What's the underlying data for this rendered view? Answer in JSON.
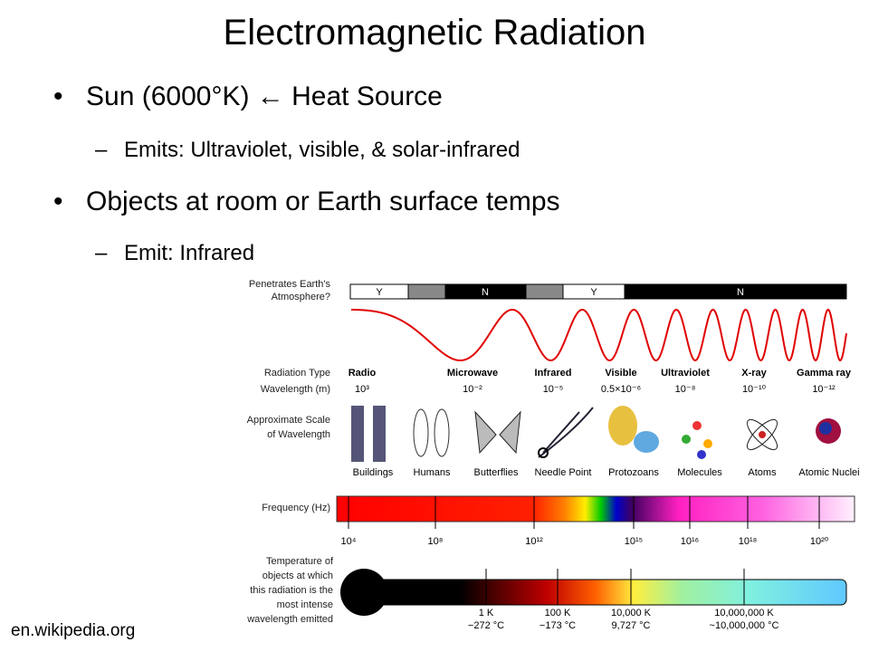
{
  "title": "Electromagnetic Radiation",
  "bullets": [
    {
      "text": "Sun (6000°K) ← Heat Source",
      "sub": [
        "Emits: Ultraviolet, visible, & solar-infrared"
      ]
    },
    {
      "text": "Objects at room or Earth surface temps",
      "sub": [
        "Emit: Infrared"
      ]
    }
  ],
  "source": "en.wikipedia.org",
  "diagram": {
    "atmosphere_label": [
      "Penetrates Earth's",
      "Atmosphere?"
    ],
    "atmosphere_bands": [
      "Y",
      "N",
      "Y",
      "N"
    ],
    "radiation_type_label": "Radiation Type",
    "wavelength_label": "Wavelength (m)",
    "types": [
      {
        "name": "Radio",
        "wavelength": "10³"
      },
      {
        "name": "Microwave",
        "wavelength": "10⁻²"
      },
      {
        "name": "Infrared",
        "wavelength": "10⁻⁵"
      },
      {
        "name": "Visible",
        "wavelength": "0.5×10⁻⁶"
      },
      {
        "name": "Ultraviolet",
        "wavelength": "10⁻⁸"
      },
      {
        "name": "X-ray",
        "wavelength": "10⁻¹⁰"
      },
      {
        "name": "Gamma ray",
        "wavelength": "10⁻¹²"
      }
    ],
    "scale_label": [
      "Approximate Scale",
      "of Wavelength"
    ],
    "scale_objects": [
      "Buildings",
      "Humans",
      "Butterflies",
      "Needle Point",
      "Protozoans",
      "Molecules",
      "Atoms",
      "Atomic Nuclei"
    ],
    "frequency_label": "Frequency (Hz)",
    "frequencies": [
      "10⁴",
      "10⁸",
      "10¹²",
      "10¹⁵",
      "10¹⁶",
      "10¹⁸",
      "10²⁰"
    ],
    "temperature_label": [
      "Temperature of",
      "objects at which",
      "this radiation is the",
      "most intense",
      "wavelength emitted"
    ],
    "temperatures": [
      {
        "kelvin": "1 K",
        "celsius": "−272 °C"
      },
      {
        "kelvin": "100 K",
        "celsius": "−173 °C"
      },
      {
        "kelvin": "10,000 K",
        "celsius": "9,727 °C"
      },
      {
        "kelvin": "10,000,000 K",
        "celsius": "~10,000,000 °C"
      }
    ]
  }
}
